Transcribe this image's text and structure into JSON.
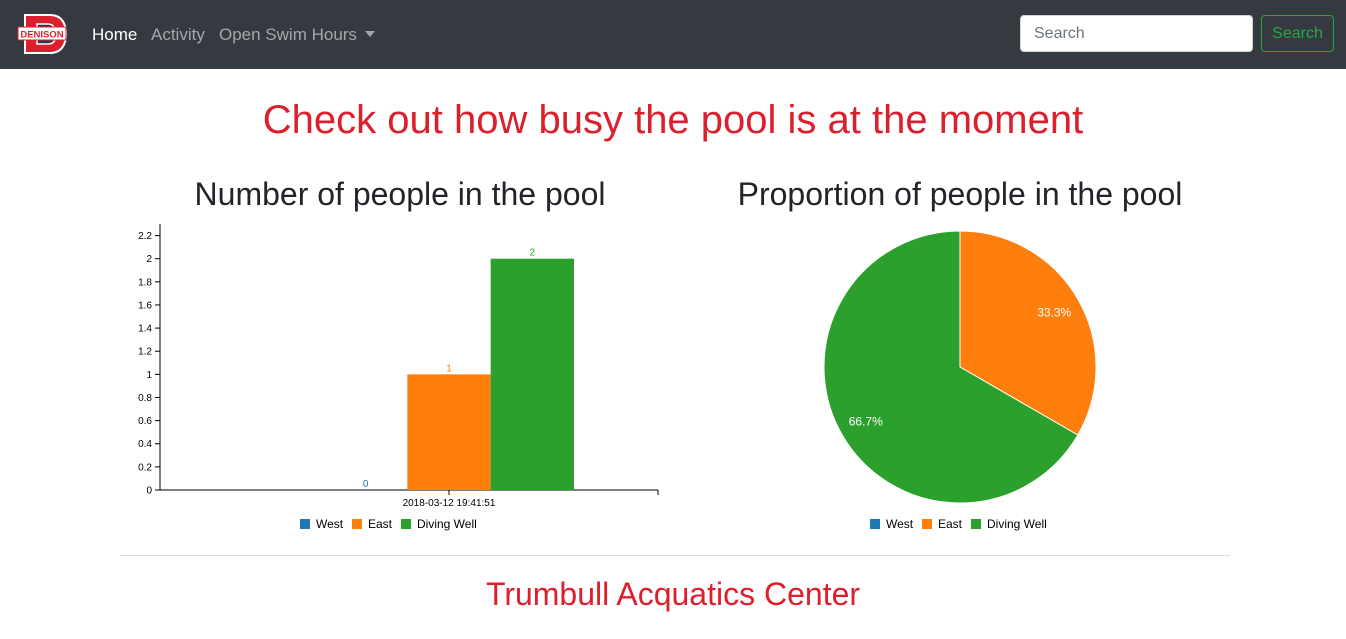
{
  "navbar": {
    "logo_text": "DENISON",
    "links": [
      {
        "label": "Home",
        "active": true
      },
      {
        "label": "Activity",
        "active": false
      },
      {
        "label": "Open Swim Hours",
        "active": false,
        "dropdown": true
      }
    ],
    "search": {
      "placeholder": "Search",
      "value": "",
      "button_label": "Search"
    }
  },
  "page": {
    "heading": "Check out how busy the pool is at the moment",
    "footer_title": "Trumbull Acquatics Center"
  },
  "colors": {
    "brand_red": "#dc1f2c",
    "navbar_bg": "#343a40",
    "west": "#1f77b4",
    "east": "#ff7f0e",
    "diving_well": "#2ca02c"
  },
  "chart_data": [
    {
      "type": "bar",
      "title": "Number of people in the pool",
      "categories": [
        "2018-03-12 19:41:51"
      ],
      "series": [
        {
          "name": "West",
          "values": [
            0
          ],
          "color": "#1f77b4"
        },
        {
          "name": "East",
          "values": [
            1
          ],
          "color": "#ff7f0e"
        },
        {
          "name": "Diving Well",
          "values": [
            2
          ],
          "color": "#2ca02c"
        }
      ],
      "ylim": [
        0,
        2.3
      ],
      "yticks": [
        "0",
        "0.2",
        "0.4",
        "0.6",
        "0.8",
        "1",
        "1.2",
        "1.4",
        "1.6",
        "1.8",
        "2",
        "2.2"
      ],
      "data_labels": [
        "0",
        "1",
        "2"
      ],
      "legend": "bottom",
      "grid": false
    },
    {
      "type": "pie",
      "title": "Proportion of people in the pool",
      "slices": [
        {
          "name": "West",
          "value": 0,
          "color": "#1f77b4",
          "label": ""
        },
        {
          "name": "East",
          "value": 1,
          "color": "#ff7f0e",
          "label": "33.3%"
        },
        {
          "name": "Diving Well",
          "value": 2,
          "color": "#2ca02c",
          "label": "66.7%"
        }
      ],
      "legend": "bottom"
    }
  ]
}
